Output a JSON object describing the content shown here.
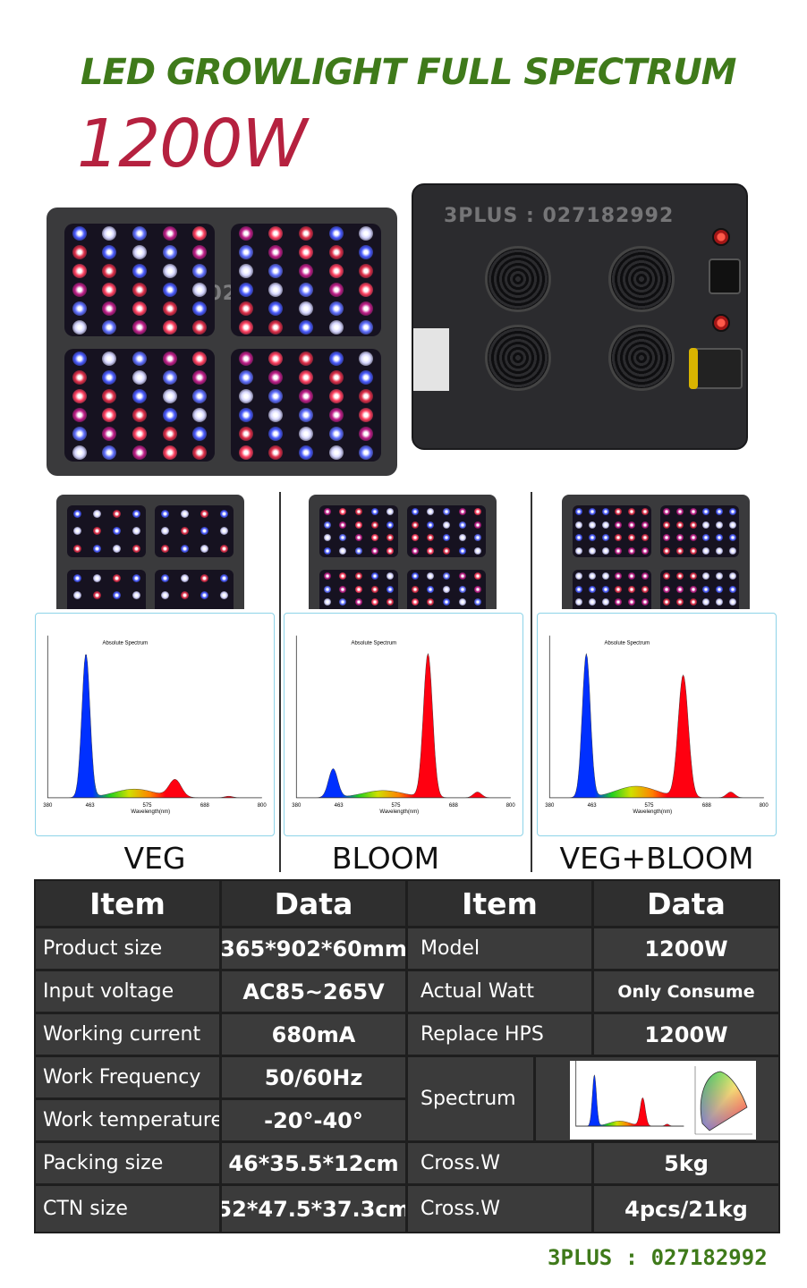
{
  "header": {
    "title": "LED GROWLIGHT FULL SPECTRUM",
    "power": "1200W"
  },
  "watermark": "3PLUS : 027182992",
  "modes": [
    {
      "label": "VEG",
      "spectrum_title": "Absolute Spectrum",
      "ticks": [
        "380",
        "463",
        "575",
        "688",
        "800"
      ],
      "xlabel": "Wavelength(nm)"
    },
    {
      "label": "BLOOM",
      "spectrum_title": "Absolute Spectrum",
      "ticks": [
        "380",
        "463",
        "575",
        "688",
        "800"
      ],
      "xlabel": "Wavelength(nm)"
    },
    {
      "label": "VEG+BLOOM",
      "spectrum_title": "Absolute Spectrum",
      "ticks": [
        "380",
        "463",
        "575",
        "688",
        "800"
      ],
      "xlabel": "Wavelength(nm)"
    }
  ],
  "table": {
    "headers": [
      "Item",
      "Data",
      "Item",
      "Data"
    ],
    "left": [
      {
        "item": "Product size",
        "data": "365*902*60mm"
      },
      {
        "item": "Input voltage",
        "data": "AC85~265V"
      },
      {
        "item": "Working current",
        "data": "680mA"
      },
      {
        "item": "Work Frequency",
        "data": "50/60Hz"
      },
      {
        "item": "Work temperature",
        "data": "-20°-40°"
      },
      {
        "item": "Packing size",
        "data": "46*35.5*12cm"
      },
      {
        "item": "CTN size",
        "data": "52*47.5*37.3cm"
      }
    ],
    "right": [
      {
        "item": "Model",
        "data": "1200W"
      },
      {
        "item": "Actual Watt",
        "data": "Only Consume"
      },
      {
        "item": "Replace HPS",
        "data": "1200W"
      },
      {
        "item": "Spectrum",
        "data": ""
      },
      {
        "item": "Cross.W",
        "data": "5kg"
      },
      {
        "item": "Cross.W",
        "data": "4pcs/21kg"
      }
    ]
  },
  "footer": "3PLUS : 027182992",
  "colors": {
    "title": "#3f7a1a",
    "power": "#b5213f",
    "table_bg": "#3b3b3b"
  }
}
